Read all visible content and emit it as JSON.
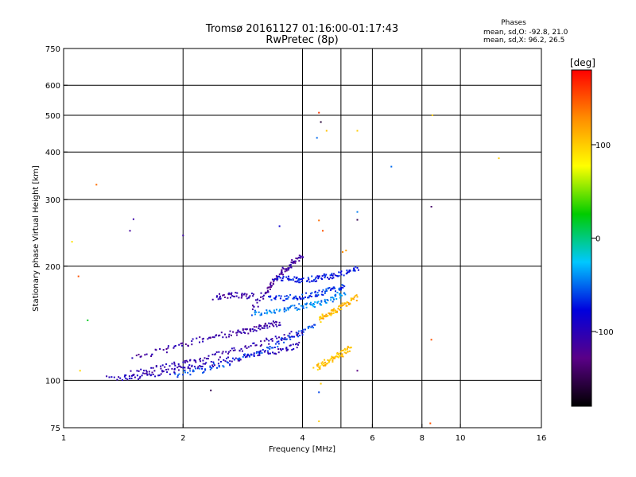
{
  "chart_data": {
    "type": "scatter",
    "title": "Tromsø 20161127 01:16:00-01:17:43",
    "subtitle": "RwPretec (8p)",
    "xlabel": "Frequency [MHz]",
    "ylabel": "Stationary phase Virtual Height [km]",
    "xscale": "log",
    "yscale": "log",
    "xlim": [
      1,
      16
    ],
    "ylim": [
      75,
      750
    ],
    "x_ticks": [
      1,
      2,
      4,
      6,
      8,
      10,
      16
    ],
    "x_tick_labels": [
      "1",
      "2",
      "4",
      "6",
      "8",
      "10",
      "16"
    ],
    "y_ticks": [
      75,
      100,
      200,
      300,
      400,
      500,
      600,
      750
    ],
    "y_tick_labels": [
      "75",
      "100",
      "200",
      "300",
      "400",
      "500",
      "600",
      "750"
    ],
    "x_gridlines": [
      2,
      4,
      5,
      6,
      8,
      10
    ],
    "y_gridlines": [
      100,
      200,
      300,
      400,
      500,
      600
    ],
    "grid": true,
    "legend": {
      "title": "Phases",
      "lines": [
        "mean, sd,O: -92.8, 21.0",
        "mean, sd,X:  96.2, 26.5"
      ],
      "placement": "top-right"
    },
    "colorbar": {
      "label": "[deg]",
      "range": [
        -180,
        180
      ],
      "ticks": [
        100,
        0,
        -100
      ],
      "tick_labels": [
        "100",
        "0",
        "-100"
      ],
      "colors": [
        "#000000",
        "#5a0087",
        "#0000dd",
        "#00c8ff",
        "#00cc00",
        "#ffff00",
        "#ff8c00",
        "#ff0000"
      ]
    },
    "traces": [
      {
        "x": [
          1.3,
          1.5,
          1.7,
          1.9,
          2.1,
          2.4,
          2.8,
          3.2,
          3.6,
          3.9
        ],
        "y": [
          101,
          102,
          104,
          106,
          108,
          111,
          115,
          118,
          121,
          124
        ],
        "phase": -100
      },
      {
        "x": [
          1.45,
          1.65,
          1.9,
          2.15,
          2.45,
          2.8,
          3.2,
          3.6,
          4.0
        ],
        "y": [
          104,
          106,
          110,
          113,
          117,
          121,
          126,
          130,
          135
        ],
        "phase": -105
      },
      {
        "x": [
          1.9,
          2.2,
          2.5,
          2.85,
          3.2,
          3.5,
          3.9,
          4.3
        ],
        "y": [
          103,
          106,
          110,
          115,
          120,
          126,
          133,
          140
        ],
        "phase": -60
      },
      {
        "x": [
          1.5,
          1.8,
          2.1,
          2.4,
          2.7,
          2.9,
          3.1,
          3.3,
          3.5
        ],
        "y": [
          115,
          120,
          126,
          131,
          133,
          135,
          138,
          140,
          142
        ],
        "phase": -110
      },
      {
        "x": [
          3.0,
          3.2,
          3.35,
          3.5,
          3.65,
          3.8,
          4.0
        ],
        "y": [
          155,
          168,
          180,
          190,
          198,
          205,
          212
        ],
        "phase": -115
      },
      {
        "x": [
          3.4,
          3.7,
          3.9,
          4.2,
          4.5,
          4.8,
          5.2,
          5.5
        ],
        "y": [
          186,
          185,
          184,
          185,
          187,
          189,
          192,
          198
        ],
        "phase": -75
      },
      {
        "x": [
          3.3,
          3.6,
          3.9,
          4.2,
          4.5,
          4.8,
          5.1
        ],
        "y": [
          164,
          165,
          166,
          168,
          171,
          174,
          177
        ],
        "phase": -65
      },
      {
        "x": [
          3.0,
          3.3,
          3.6,
          3.9,
          4.2,
          4.5,
          4.8,
          5.1
        ],
        "y": [
          150,
          152,
          154,
          156,
          158,
          160,
          165,
          170
        ],
        "phase": -45
      },
      {
        "x": [
          4.4,
          4.6,
          4.8,
          5.0,
          5.2,
          5.5
        ],
        "y": [
          145,
          148,
          152,
          156,
          160,
          166
        ],
        "phase": 110
      },
      {
        "x": [
          4.3,
          4.5,
          4.7,
          4.9,
          5.1,
          5.3
        ],
        "y": [
          108,
          110,
          113,
          116,
          119,
          122
        ],
        "phase": 105
      },
      {
        "x": [
          2.4,
          2.6,
          2.8,
          3.0
        ],
        "y": [
          166,
          167,
          168,
          167
        ],
        "phase": -110
      }
    ],
    "scatter_points": [
      {
        "x": 1.05,
        "y": 232,
        "phase": 90
      },
      {
        "x": 1.09,
        "y": 188,
        "phase": 150
      },
      {
        "x": 1.1,
        "y": 106,
        "phase": 95
      },
      {
        "x": 1.15,
        "y": 144,
        "phase": 20
      },
      {
        "x": 1.21,
        "y": 328,
        "phase": 140
      },
      {
        "x": 1.47,
        "y": 248,
        "phase": -115
      },
      {
        "x": 1.5,
        "y": 266,
        "phase": -110
      },
      {
        "x": 2.0,
        "y": 241,
        "phase": -110
      },
      {
        "x": 2.35,
        "y": 94,
        "phase": -150
      },
      {
        "x": 3.5,
        "y": 255,
        "phase": -85
      },
      {
        "x": 4.35,
        "y": 436,
        "phase": -50
      },
      {
        "x": 4.4,
        "y": 508,
        "phase": 160
      },
      {
        "x": 4.45,
        "y": 480,
        "phase": -160
      },
      {
        "x": 4.6,
        "y": 455,
        "phase": 105
      },
      {
        "x": 4.4,
        "y": 264,
        "phase": 140
      },
      {
        "x": 4.5,
        "y": 248,
        "phase": 150
      },
      {
        "x": 4.45,
        "y": 98,
        "phase": 100
      },
      {
        "x": 4.4,
        "y": 93,
        "phase": -60
      },
      {
        "x": 4.4,
        "y": 78,
        "phase": 100
      },
      {
        "x": 5.5,
        "y": 455,
        "phase": 100
      },
      {
        "x": 5.5,
        "y": 278,
        "phase": -45
      },
      {
        "x": 5.5,
        "y": 265,
        "phase": -150
      },
      {
        "x": 5.5,
        "y": 106,
        "phase": -130
      },
      {
        "x": 5.05,
        "y": 218,
        "phase": 130
      },
      {
        "x": 5.15,
        "y": 220,
        "phase": 120
      },
      {
        "x": 6.7,
        "y": 366,
        "phase": -50
      },
      {
        "x": 8.45,
        "y": 287,
        "phase": -140
      },
      {
        "x": 8.5,
        "y": 500,
        "phase": 100
      },
      {
        "x": 8.45,
        "y": 128,
        "phase": 150
      },
      {
        "x": 8.4,
        "y": 77,
        "phase": 150
      },
      {
        "x": 12.5,
        "y": 385,
        "phase": 100
      }
    ]
  }
}
